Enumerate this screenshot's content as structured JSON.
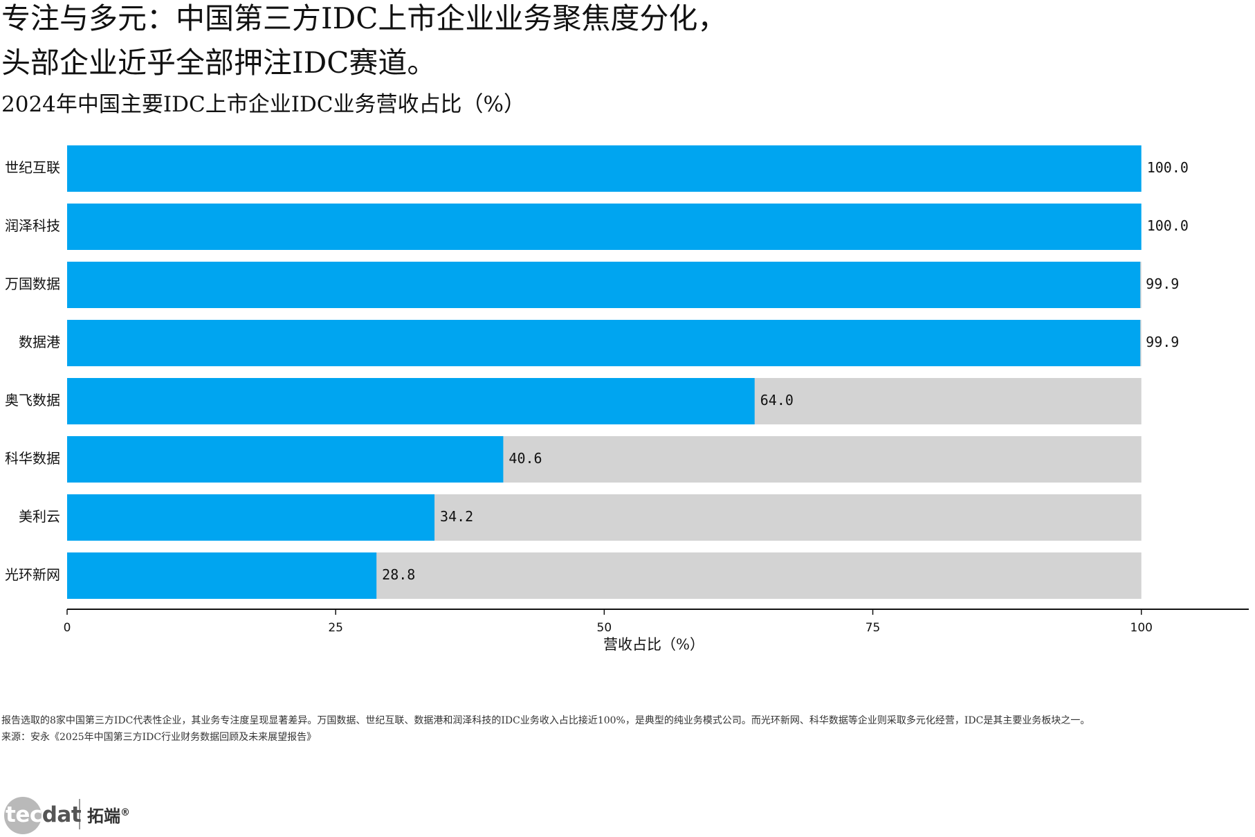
{
  "title_line1": "专注与多元：中国第三方IDC上市企业业务聚焦度分化，",
  "title_line2": "头部企业近乎全部押注IDC赛道。",
  "colors": {
    "bar": "#00a5f0",
    "remainder": "#d3d3d3",
    "axis": "#111111"
  },
  "chart_data": {
    "type": "bar",
    "orientation": "horizontal",
    "title": "2024年中国主要IDC上市企业IDC业务营收占比（%）",
    "categories": [
      "世纪互联",
      "润泽科技",
      "万国数据",
      "数据港",
      "奥飞数据",
      "科华数据",
      "美利云",
      "光环新网"
    ],
    "values": [
      100.0,
      100.0,
      99.9,
      99.9,
      64.0,
      40.6,
      34.2,
      28.8
    ],
    "value_labels": [
      "100.0",
      "100.0",
      "99.9",
      "99.9",
      "64.0",
      "40.6",
      "34.2",
      "28.8"
    ],
    "background_max": 100,
    "xlabel": "营收占比（%）",
    "ylabel": "",
    "xlim": [
      0,
      110
    ],
    "xticks": [
      0,
      25,
      50,
      75,
      100
    ],
    "xtick_labels": [
      "0",
      "25",
      "50",
      "75",
      "100"
    ],
    "grid": false,
    "legend": "none"
  },
  "footnote": "报告选取的8家中国第三方IDC代表性企业，其业务专注度呈现显著差异。万国数据、世纪互联、数据港和润泽科技的IDC业务收入占比接近100%，是典型的纯业务模式公司。而光环新网、科华数据等企业则采取多元化经营，IDC是其主要业务板块之一。",
  "source": "来源：安永《2025年中国第三方IDC行业财务数据回顾及未来展望报告》",
  "logo": {
    "brand_en_1": "tec",
    "brand_en_2": "dat",
    "brand_cn": "拓端",
    "mark": "®"
  }
}
